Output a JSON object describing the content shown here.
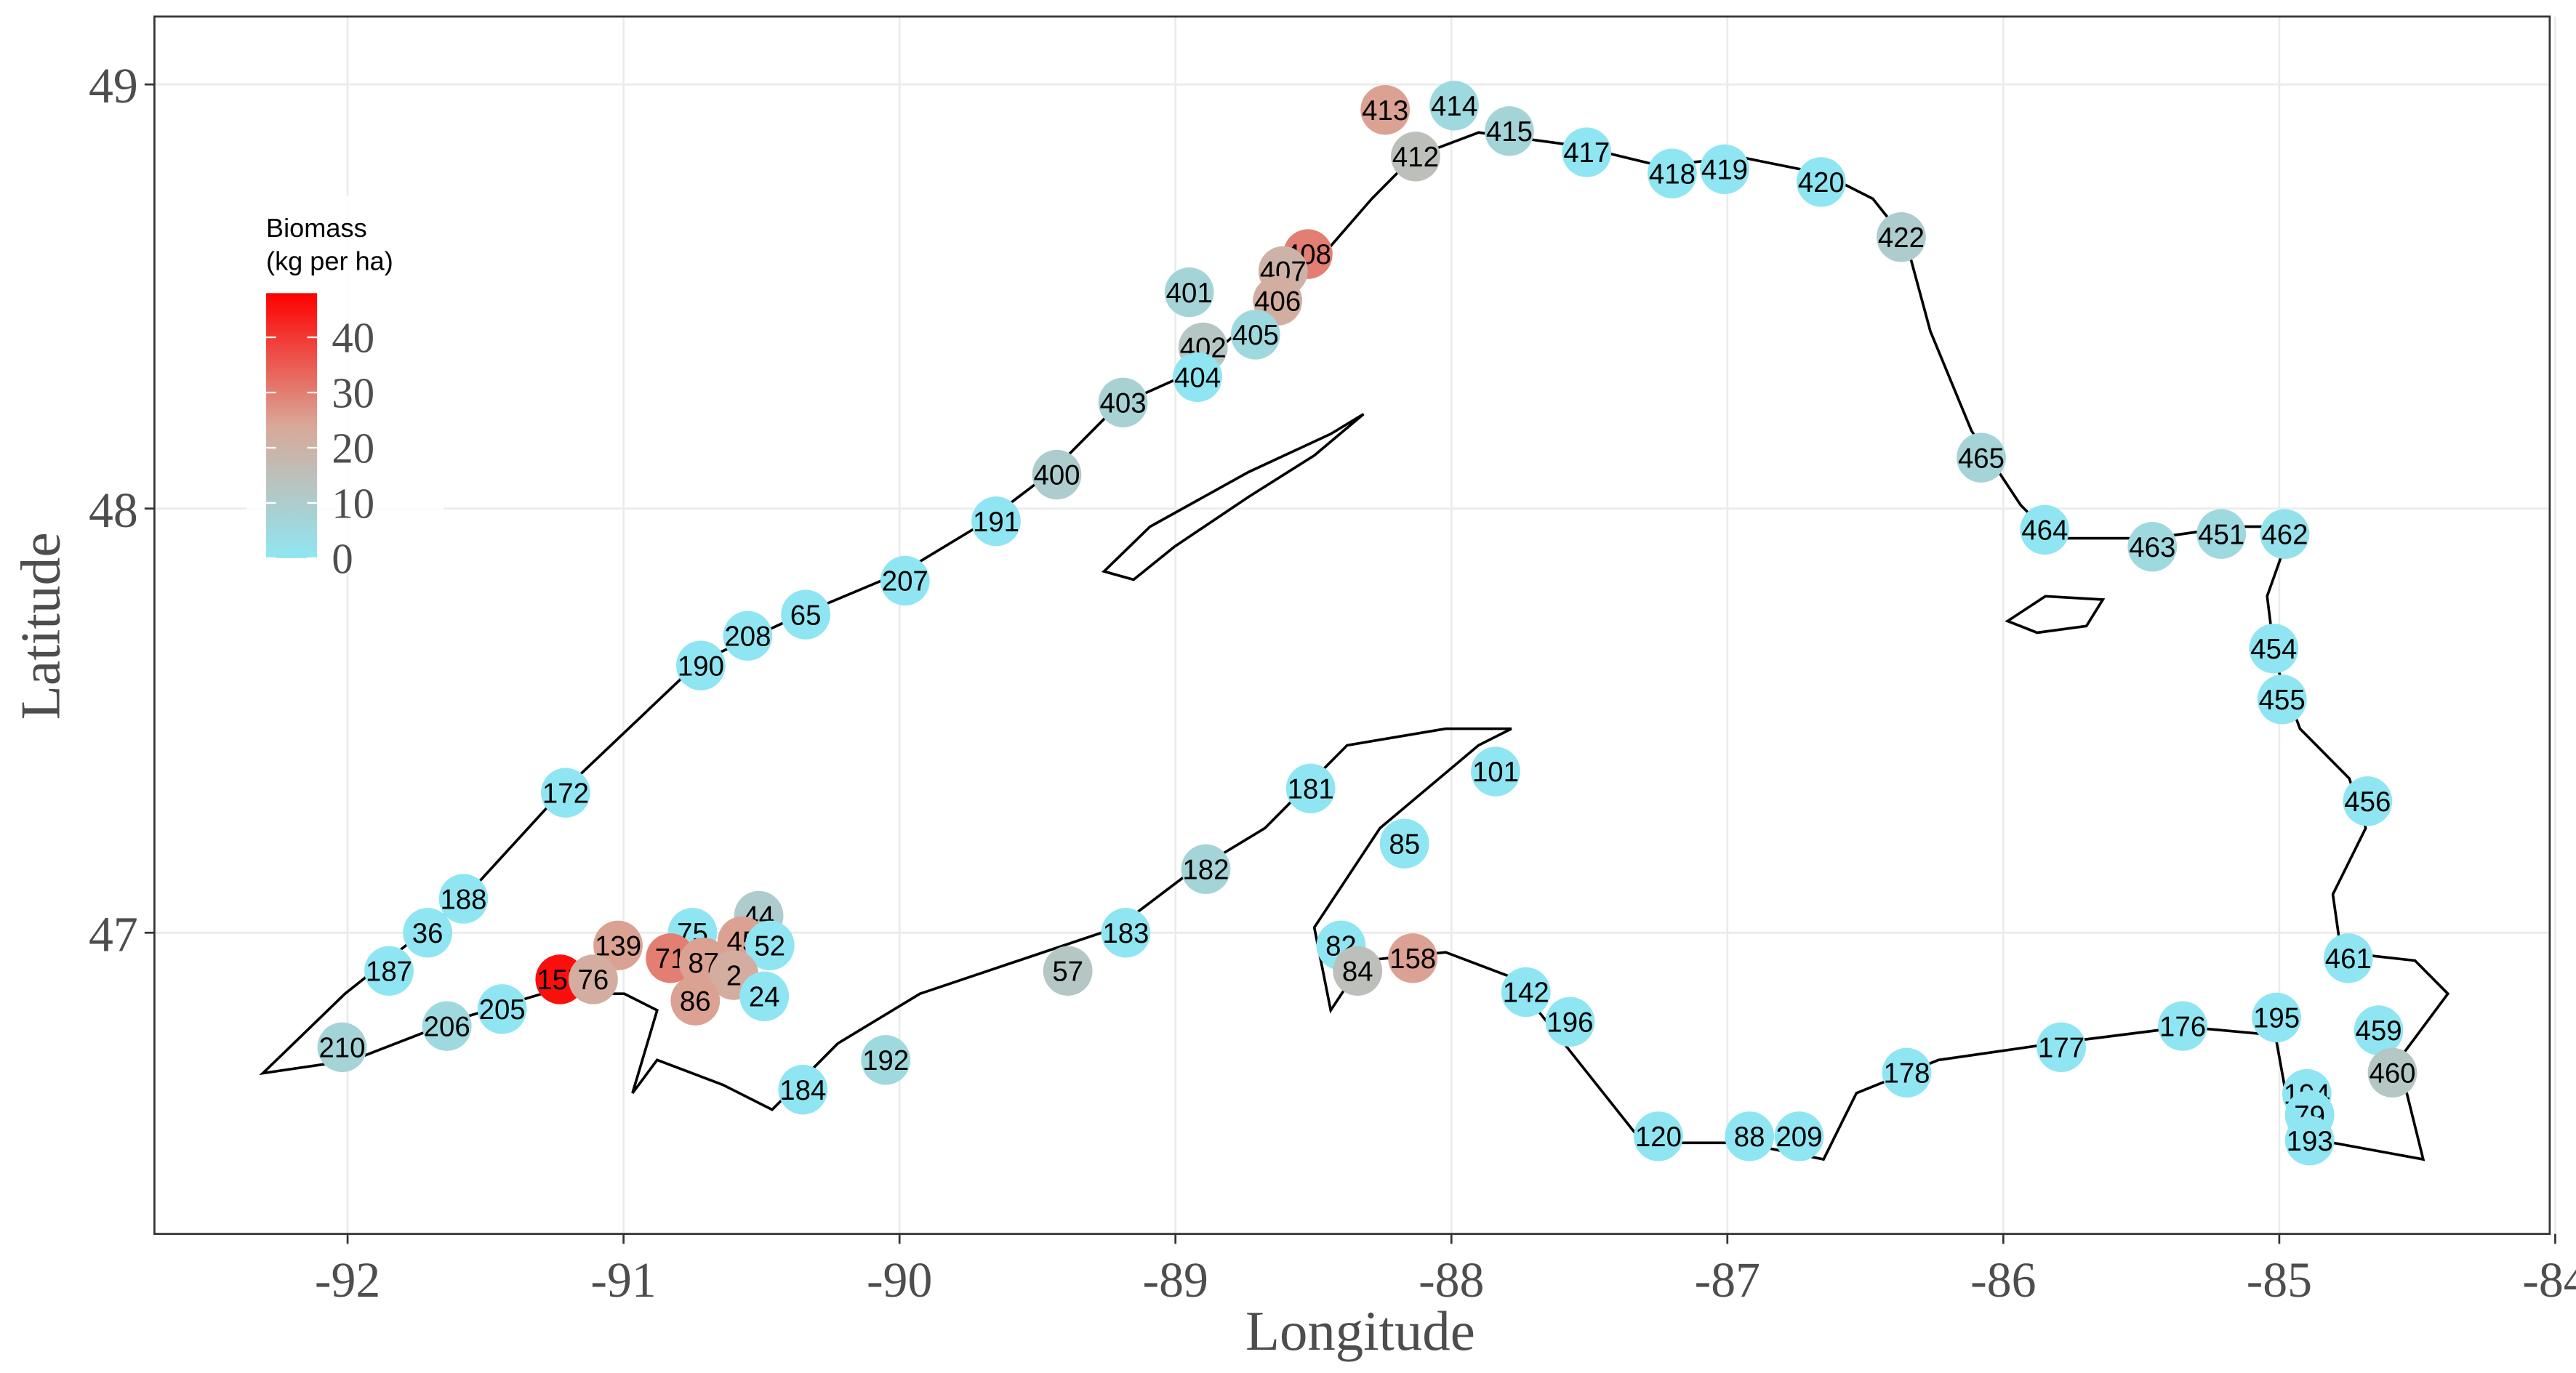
{
  "chart_data": {
    "type": "scatter",
    "x_label": "Longitude",
    "y_label": "Latitude",
    "xlim": [
      -92.7,
      -84.02
    ],
    "ylim": [
      46.29,
      49.16
    ],
    "xticks": [
      -92,
      -91,
      -90,
      -89,
      -88,
      -87,
      -86,
      -85,
      -84
    ],
    "yticks": [
      47,
      48,
      49
    ],
    "grid": true,
    "colorbar": {
      "title_lines": [
        "Biomass",
        "(kg per ha)"
      ],
      "clim": [
        0,
        48
      ],
      "ticks": [
        0,
        10,
        20,
        30,
        40
      ],
      "colors": [
        "#8fe6f2",
        "#d9a898",
        "#ff0000"
      ]
    },
    "points": [
      {
        "label": "413",
        "lon": -88.24,
        "lat": 48.94,
        "value": 25
      },
      {
        "label": "414",
        "lon": -87.99,
        "lat": 48.95,
        "value": 5
      },
      {
        "label": "415",
        "lon": -87.79,
        "lat": 48.89,
        "value": 7
      },
      {
        "label": "412",
        "lon": -88.13,
        "lat": 48.83,
        "value": 15
      },
      {
        "label": "417",
        "lon": -87.51,
        "lat": 48.84,
        "value": 0
      },
      {
        "label": "418",
        "lon": -87.2,
        "lat": 48.79,
        "value": 0
      },
      {
        "label": "419",
        "lon": -87.01,
        "lat": 48.8,
        "value": 0
      },
      {
        "label": "420",
        "lon": -86.66,
        "lat": 48.77,
        "value": 0
      },
      {
        "label": "422",
        "lon": -86.37,
        "lat": 48.64,
        "value": 10
      },
      {
        "label": "408",
        "lon": -88.52,
        "lat": 48.6,
        "value": 30
      },
      {
        "label": "407",
        "lon": -88.61,
        "lat": 48.56,
        "value": 20
      },
      {
        "label": "406",
        "lon": -88.63,
        "lat": 48.49,
        "value": 22
      },
      {
        "label": "401",
        "lon": -88.95,
        "lat": 48.51,
        "value": 7
      },
      {
        "label": "402",
        "lon": -88.9,
        "lat": 48.38,
        "value": 12
      },
      {
        "label": "405",
        "lon": -88.71,
        "lat": 48.41,
        "value": 5
      },
      {
        "label": "404",
        "lon": -88.92,
        "lat": 48.31,
        "value": 0
      },
      {
        "label": "403",
        "lon": -89.19,
        "lat": 48.25,
        "value": 8
      },
      {
        "label": "400",
        "lon": -89.43,
        "lat": 48.08,
        "value": 10
      },
      {
        "label": "465",
        "lon": -86.08,
        "lat": 48.12,
        "value": 7
      },
      {
        "label": "191",
        "lon": -89.65,
        "lat": 47.97,
        "value": 0
      },
      {
        "label": "464",
        "lon": -85.85,
        "lat": 47.95,
        "value": 0
      },
      {
        "label": "463",
        "lon": -85.46,
        "lat": 47.91,
        "value": 5
      },
      {
        "label": "451",
        "lon": -85.21,
        "lat": 47.94,
        "value": 5
      },
      {
        "label": "462",
        "lon": -84.98,
        "lat": 47.94,
        "value": 2
      },
      {
        "label": "207",
        "lon": -89.98,
        "lat": 47.83,
        "value": 0
      },
      {
        "label": "65",
        "lon": -90.34,
        "lat": 47.75,
        "value": 0
      },
      {
        "label": "208",
        "lon": -90.55,
        "lat": 47.7,
        "value": 0
      },
      {
        "label": "190",
        "lon": -90.72,
        "lat": 47.63,
        "value": 0
      },
      {
        "label": "454",
        "lon": -85.02,
        "lat": 47.67,
        "value": 0
      },
      {
        "label": "455",
        "lon": -84.99,
        "lat": 47.55,
        "value": 0
      },
      {
        "label": "172",
        "lon": -91.21,
        "lat": 47.33,
        "value": 0
      },
      {
        "label": "181",
        "lon": -88.51,
        "lat": 47.34,
        "value": 0
      },
      {
        "label": "101",
        "lon": -87.84,
        "lat": 47.38,
        "value": 0
      },
      {
        "label": "456",
        "lon": -84.68,
        "lat": 47.31,
        "value": 0
      },
      {
        "label": "85",
        "lon": -88.17,
        "lat": 47.21,
        "value": 0
      },
      {
        "label": "182",
        "lon": -88.89,
        "lat": 47.15,
        "value": 7
      },
      {
        "label": "188",
        "lon": -91.58,
        "lat": 47.08,
        "value": 0
      },
      {
        "label": "36",
        "lon": -91.71,
        "lat": 47.0,
        "value": 0
      },
      {
        "label": "75",
        "lon": -90.75,
        "lat": 47.0,
        "value": 0
      },
      {
        "label": "44",
        "lon": -90.51,
        "lat": 47.04,
        "value": 10
      },
      {
        "label": "45",
        "lon": -90.57,
        "lat": 46.98,
        "value": 25
      },
      {
        "label": "52",
        "lon": -90.47,
        "lat": 46.97,
        "value": 0
      },
      {
        "label": "139",
        "lon": -91.02,
        "lat": 46.97,
        "value": 25
      },
      {
        "label": "71",
        "lon": -90.83,
        "lat": 46.94,
        "value": 30
      },
      {
        "label": "87",
        "lon": -90.71,
        "lat": 46.93,
        "value": 25
      },
      {
        "label": "2",
        "lon": -90.6,
        "lat": 46.9,
        "value": 22
      },
      {
        "label": "82",
        "lon": -88.4,
        "lat": 46.97,
        "value": 0
      },
      {
        "label": "158",
        "lon": -88.14,
        "lat": 46.94,
        "value": 25
      },
      {
        "label": "183",
        "lon": -89.18,
        "lat": 47.0,
        "value": 0
      },
      {
        "label": "461",
        "lon": -84.75,
        "lat": 46.94,
        "value": 0
      },
      {
        "label": "187",
        "lon": -91.85,
        "lat": 46.91,
        "value": 0
      },
      {
        "label": "157",
        "lon": -91.23,
        "lat": 46.89,
        "value": 46
      },
      {
        "label": "76",
        "lon": -91.11,
        "lat": 46.89,
        "value": 22
      },
      {
        "label": "57",
        "lon": -89.39,
        "lat": 46.91,
        "value": 12
      },
      {
        "label": "84",
        "lon": -88.34,
        "lat": 46.91,
        "value": 15
      },
      {
        "label": "86",
        "lon": -90.74,
        "lat": 46.84,
        "value": 25
      },
      {
        "label": "24",
        "lon": -90.49,
        "lat": 46.85,
        "value": 0
      },
      {
        "label": "205",
        "lon": -91.44,
        "lat": 46.82,
        "value": 0
      },
      {
        "label": "206",
        "lon": -91.64,
        "lat": 46.78,
        "value": 5
      },
      {
        "label": "142",
        "lon": -87.73,
        "lat": 46.86,
        "value": 0
      },
      {
        "label": "196",
        "lon": -87.57,
        "lat": 46.79,
        "value": 0
      },
      {
        "label": "176",
        "lon": -85.35,
        "lat": 46.78,
        "value": 0
      },
      {
        "label": "195",
        "lon": -85.01,
        "lat": 46.8,
        "value": 0
      },
      {
        "label": "459",
        "lon": -84.64,
        "lat": 46.77,
        "value": 0
      },
      {
        "label": "210",
        "lon": -92.02,
        "lat": 46.73,
        "value": 7
      },
      {
        "label": "192",
        "lon": -90.05,
        "lat": 46.7,
        "value": 5
      },
      {
        "label": "177",
        "lon": -85.79,
        "lat": 46.73,
        "value": 0
      },
      {
        "label": "178",
        "lon": -86.35,
        "lat": 46.67,
        "value": 0
      },
      {
        "label": "460",
        "lon": -84.59,
        "lat": 46.67,
        "value": 12
      },
      {
        "label": "184",
        "lon": -90.35,
        "lat": 46.63,
        "value": 0
      },
      {
        "label": "194",
        "lon": -84.9,
        "lat": 46.62,
        "value": 0
      },
      {
        "label": "79",
        "lon": -84.89,
        "lat": 46.57,
        "value": 0
      },
      {
        "label": "193",
        "lon": -84.89,
        "lat": 46.51,
        "value": 0
      },
      {
        "label": "120",
        "lon": -87.25,
        "lat": 46.52,
        "value": 0
      },
      {
        "label": "88",
        "lon": -86.92,
        "lat": 46.52,
        "value": 0
      },
      {
        "label": "209",
        "lon": -86.74,
        "lat": 46.52,
        "value": 0
      }
    ]
  }
}
